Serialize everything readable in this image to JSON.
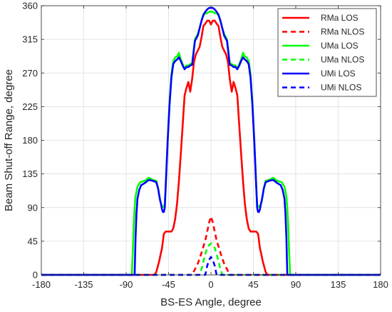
{
  "chart_data": {
    "type": "line",
    "xlabel": "BS-ES Angle, degree",
    "ylabel": "Beam Shut-off Range, degree",
    "xlim": [
      -180,
      180
    ],
    "ylim": [
      0,
      360
    ],
    "xticks": [
      -180,
      -135,
      -90,
      -45,
      0,
      45,
      90,
      135,
      180
    ],
    "yticks": [
      0,
      45,
      90,
      135,
      180,
      225,
      270,
      315,
      360
    ],
    "xtick_labels": [
      "-180",
      "-135",
      "-90",
      "-45",
      "0",
      "45",
      "90",
      "135",
      "180"
    ],
    "ytick_labels": [
      "0",
      "45",
      "90",
      "135",
      "180",
      "225",
      "270",
      "315",
      "360"
    ],
    "grid": true,
    "legend_position": "top-right",
    "series": [
      {
        "name": "RMa LOS",
        "color": "#ff0000",
        "dash": "solid",
        "x": [
          -180,
          -60,
          -58,
          -55,
          -53,
          -52,
          -50,
          -48,
          -45,
          -42,
          -40,
          -38,
          -36,
          -34,
          -32,
          -30,
          -28,
          -26,
          -24,
          -22,
          -20,
          -18,
          -16,
          -14,
          -12,
          -10,
          -8,
          -6,
          -4,
          -2,
          0,
          2,
          4,
          6,
          8,
          10,
          12,
          14,
          16,
          18,
          20,
          22,
          24,
          26,
          28,
          30,
          32,
          34,
          36,
          38,
          40,
          42,
          45,
          48,
          50,
          52,
          53,
          55,
          58,
          60,
          180
        ],
        "y": [
          0,
          0,
          4,
          18,
          30,
          35,
          55,
          58,
          58,
          58,
          62,
          75,
          95,
          125,
          162,
          200,
          240,
          250,
          258,
          245,
          262,
          285,
          295,
          300,
          305,
          318,
          333,
          336,
          340,
          340,
          335,
          340,
          340,
          336,
          333,
          318,
          305,
          300,
          295,
          285,
          262,
          245,
          258,
          250,
          240,
          200,
          162,
          125,
          95,
          75,
          62,
          58,
          58,
          58,
          55,
          35,
          30,
          18,
          4,
          0,
          0
        ]
      },
      {
        "name": "RMa NLOS",
        "color": "#ff0000",
        "dash": "dashed",
        "x": [
          -180,
          -20,
          -18,
          -16,
          -14,
          -12,
          -10,
          -8,
          -6,
          -4,
          -2,
          0,
          2,
          4,
          6,
          8,
          10,
          12,
          14,
          16,
          18,
          20,
          180
        ],
        "y": [
          0,
          0,
          5,
          10,
          15,
          22,
          30,
          38,
          46,
          58,
          70,
          78,
          70,
          58,
          46,
          38,
          30,
          22,
          15,
          10,
          5,
          0,
          0
        ]
      },
      {
        "name": "UMa LOS",
        "color": "#00ff00",
        "dash": "solid",
        "x": [
          -180,
          -84,
          -83,
          -82,
          -81,
          -80,
          -78,
          -75,
          -70,
          -66,
          -62,
          -58,
          -56,
          -55,
          -54,
          -53,
          -52,
          -51,
          -50,
          -49,
          -48,
          -46,
          -44,
          -42,
          -40,
          -38,
          -36,
          -34,
          -32,
          -30,
          -28,
          -26,
          -24,
          -22,
          -20,
          -17,
          -14,
          -12,
          -10,
          -8,
          -6,
          -4,
          -2,
          0,
          2,
          4,
          6,
          8,
          10,
          12,
          14,
          17,
          20,
          22,
          24,
          26,
          28,
          30,
          32,
          34,
          36,
          38,
          40,
          42,
          44,
          46,
          48,
          49,
          50,
          51,
          52,
          53,
          54,
          55,
          56,
          58,
          62,
          66,
          70,
          75,
          78,
          80,
          81,
          82,
          83,
          84,
          180
        ],
        "y": [
          0,
          0,
          30,
          65,
          90,
          105,
          118,
          124,
          126,
          130,
          127,
          126,
          115,
          107,
          100,
          95,
          92,
          91,
          91,
          95,
          120,
          180,
          230,
          268,
          286,
          291,
          292,
          297,
          288,
          282,
          276,
          280,
          280,
          282,
          283,
          315,
          322,
          330,
          340,
          347,
          350,
          350,
          352,
          352,
          352,
          350,
          350,
          347,
          340,
          330,
          322,
          315,
          283,
          282,
          280,
          280,
          276,
          282,
          288,
          297,
          292,
          291,
          286,
          268,
          230,
          180,
          120,
          95,
          91,
          91,
          92,
          95,
          100,
          107,
          115,
          126,
          127,
          130,
          126,
          124,
          118,
          105,
          90,
          65,
          30,
          0,
          0
        ]
      },
      {
        "name": "UMa NLOS",
        "color": "#00ff00",
        "dash": "dashed",
        "x": [
          -180,
          -12,
          -10,
          -8,
          -6,
          -4,
          -2,
          0,
          2,
          4,
          6,
          8,
          10,
          12,
          180
        ],
        "y": [
          0,
          0,
          8,
          18,
          28,
          36,
          40,
          42,
          40,
          36,
          28,
          18,
          8,
          0,
          0
        ]
      },
      {
        "name": "UMi LOS",
        "color": "#0000ff",
        "dash": "solid",
        "x": [
          -180,
          -81,
          -80,
          -79,
          -78,
          -76,
          -74,
          -70,
          -66,
          -62,
          -58,
          -56,
          -55,
          -54,
          -53,
          -52,
          -51,
          -50,
          -49,
          -48,
          -46,
          -44,
          -42,
          -40,
          -38,
          -36,
          -34,
          -32,
          -30,
          -28,
          -26,
          -24,
          -22,
          -20,
          -17,
          -14,
          -12,
          -10,
          -8,
          -6,
          -4,
          -2,
          0,
          2,
          4,
          6,
          8,
          10,
          12,
          14,
          17,
          20,
          22,
          24,
          26,
          28,
          30,
          32,
          34,
          36,
          38,
          40,
          42,
          44,
          46,
          48,
          49,
          50,
          51,
          52,
          53,
          54,
          55,
          56,
          58,
          62,
          66,
          70,
          74,
          76,
          78,
          79,
          80,
          81,
          180
        ],
        "y": [
          0,
          0,
          50,
          82,
          102,
          114,
          120,
          123,
          127,
          126,
          124,
          115,
          107,
          100,
          95,
          88,
          84,
          84,
          90,
          118,
          178,
          226,
          264,
          282,
          286,
          288,
          291,
          286,
          280,
          275,
          278,
          278,
          280,
          281,
          313,
          320,
          330,
          340,
          348,
          352,
          355,
          357,
          357,
          357,
          355,
          352,
          348,
          340,
          330,
          320,
          313,
          281,
          280,
          278,
          278,
          275,
          280,
          286,
          291,
          288,
          286,
          282,
          264,
          226,
          178,
          118,
          90,
          84,
          84,
          88,
          95,
          100,
          107,
          115,
          124,
          126,
          127,
          123,
          120,
          114,
          102,
          82,
          50,
          0,
          0
        ]
      },
      {
        "name": "UMi NLOS",
        "color": "#0000ff",
        "dash": "dashed",
        "x": [
          -180,
          -6,
          -4,
          -2,
          0,
          2,
          4,
          6,
          180
        ],
        "y": [
          0,
          0,
          12,
          20,
          24,
          20,
          12,
          0,
          0
        ]
      }
    ]
  }
}
